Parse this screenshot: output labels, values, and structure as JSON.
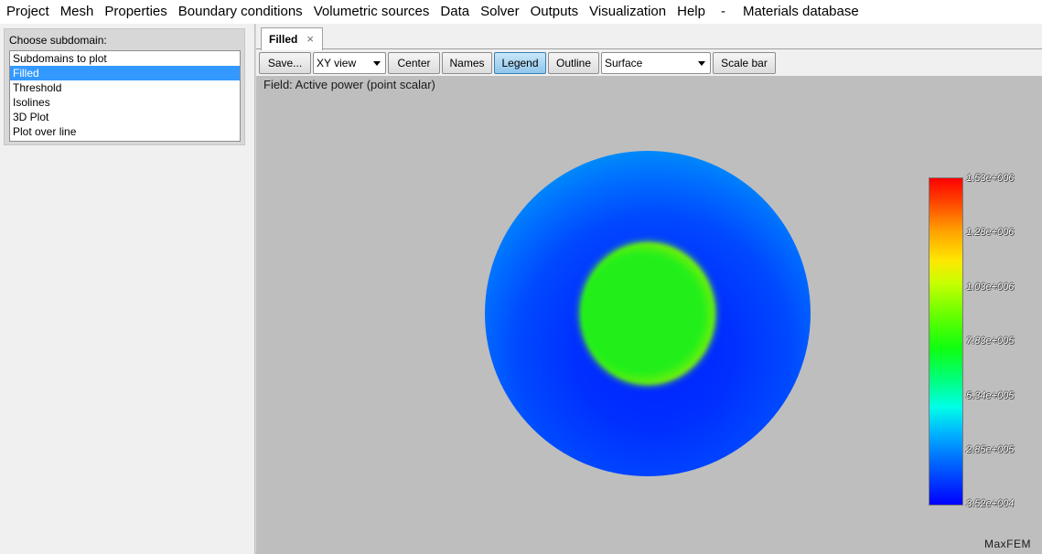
{
  "menubar": {
    "items": [
      "Project",
      "Mesh",
      "Properties",
      "Boundary conditions",
      "Volumetric sources",
      "Data",
      "Solver",
      "Outputs",
      "Visualization",
      "Help",
      "-",
      "Materials database"
    ]
  },
  "left_panel": {
    "title": "Choose subdomain:",
    "items": [
      "Subdomains to plot",
      "Filled",
      "Threshold",
      "Isolines",
      "3D Plot",
      "Plot over line"
    ],
    "selected": "Filled"
  },
  "tab": {
    "label": "Filled",
    "close_glyph": "×"
  },
  "toolbar": {
    "save": "Save...",
    "view_combo": "XY view",
    "center": "Center",
    "names": "Names",
    "legend": "Legend",
    "outline": "Outline",
    "surface_combo": "Surface",
    "scale_bar": "Scale bar"
  },
  "viewport": {
    "field_label": "Field: Active power (point scalar)",
    "brand": "MaxFEM",
    "legend_labels": [
      "1.53e+006",
      "1.28e+006",
      "1.03e+006",
      "7.83e+005",
      "5.34e+005",
      "2.85e+005",
      "3.52e+004"
    ],
    "legend_colors": {
      "max": "#ff0000",
      "mid": "#10ff10",
      "min": "#0000ff"
    }
  }
}
